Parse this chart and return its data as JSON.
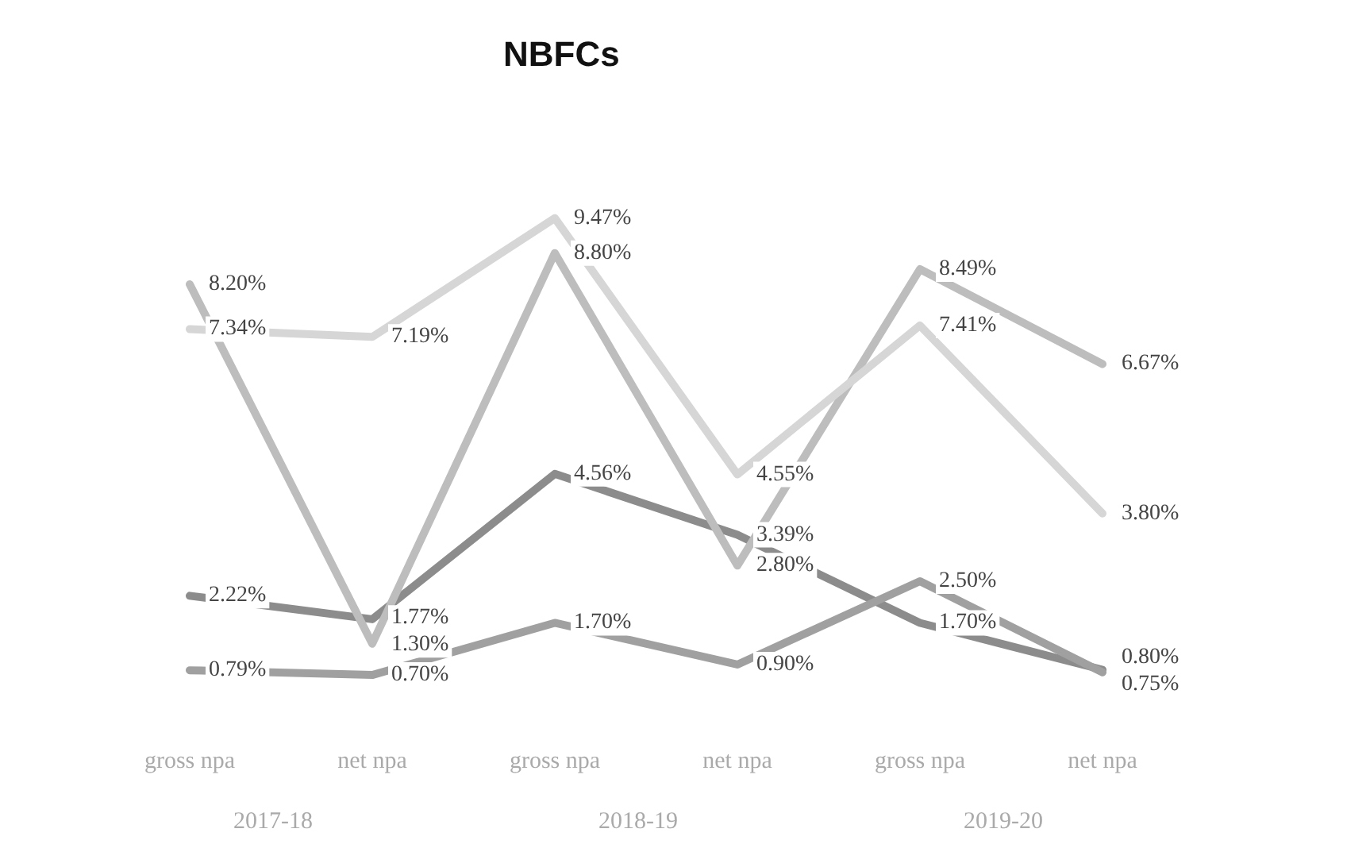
{
  "chart_data": {
    "type": "line",
    "title": "NBFCs",
    "categories": [
      "gross npa",
      "net npa",
      "gross npa",
      "net npa",
      "gross npa",
      "net npa"
    ],
    "tick_labels": "x",
    "marker": "none",
    "line_style": "solid",
    "series": [
      {
        "color": "#8c8c8c",
        "values": [
          2.22,
          1.77,
          4.56,
          3.39,
          1.7,
          0.8
        ],
        "value_labels": [
          "2.22%",
          "1.77%",
          "4.56%",
          "3.39%",
          "1.70%",
          "0.80%"
        ]
      },
      {
        "color": "#a0a0a0",
        "values": [
          0.79,
          0.7,
          1.7,
          0.9,
          2.5,
          0.75
        ],
        "value_labels": [
          "0.79%",
          "0.70%",
          "1.70%",
          "0.90%",
          "2.50%",
          "0.75%"
        ]
      },
      {
        "color": "#bdbdbd",
        "values": [
          8.2,
          1.3,
          8.8,
          2.8,
          8.49,
          6.67
        ],
        "value_labels": [
          "8.20%",
          "1.30%",
          "8.80%",
          "2.80%",
          "8.49%",
          "6.67%"
        ]
      },
      {
        "color": "#d6d6d6",
        "values": [
          7.34,
          7.19,
          9.47,
          4.55,
          7.41,
          3.8
        ],
        "value_labels": [
          "7.34%",
          "7.19%",
          "9.47%",
          "4.55%",
          "7.41%",
          "3.80%"
        ]
      }
    ],
    "annotations": [
      "2017-18",
      "2018-19",
      "2019-20"
    ]
  }
}
